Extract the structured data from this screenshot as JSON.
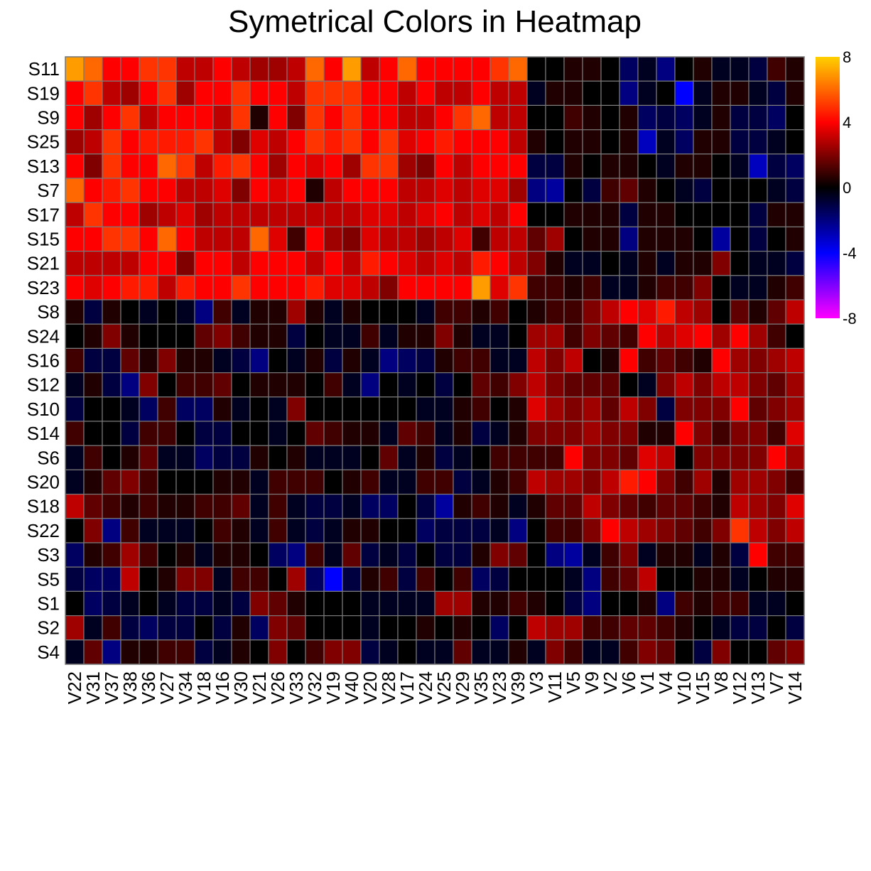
{
  "chart_data": {
    "type": "heatmap",
    "title": "Symetrical Colors in Heatmap",
    "rows": [
      "S11",
      "S19",
      "S9",
      "S25",
      "S13",
      "S7",
      "S17",
      "S15",
      "S21",
      "S23",
      "S8",
      "S24",
      "S16",
      "S12",
      "S10",
      "S14",
      "S6",
      "S20",
      "S18",
      "S22",
      "S3",
      "S5",
      "S1",
      "S2",
      "S4"
    ],
    "columns": [
      "V22",
      "V31",
      "V37",
      "V38",
      "V36",
      "V27",
      "V34",
      "V18",
      "V16",
      "V30",
      "V21",
      "V26",
      "V33",
      "V32",
      "V19",
      "V40",
      "V20",
      "V28",
      "V17",
      "V24",
      "V25",
      "V29",
      "V35",
      "V23",
      "V39",
      "V3",
      "V11",
      "V5",
      "V9",
      "V2",
      "V6",
      "V1",
      "V4",
      "V10",
      "V15",
      "V8",
      "V12",
      "V13",
      "V7",
      "V14"
    ],
    "values": [
      [
        7,
        6,
        4,
        4,
        5,
        5,
        3,
        3,
        4,
        3,
        2.5,
        2.5,
        3,
        6,
        4,
        7,
        3,
        4,
        6,
        4,
        4,
        4,
        4,
        5,
        6,
        0,
        0,
        0.5,
        0.5,
        0,
        -1.5,
        -0.5,
        -2,
        0,
        0.5,
        -0.5,
        -0.5,
        -1,
        1,
        0.5
      ],
      [
        4,
        5,
        3,
        2.5,
        4,
        5,
        2.5,
        4,
        4,
        5,
        4,
        4,
        3,
        5,
        5,
        5,
        4,
        4,
        3,
        4,
        3,
        3,
        4,
        3,
        3,
        -0.5,
        0.5,
        0.5,
        0,
        0,
        -2,
        -0.5,
        0,
        -4,
        -0.5,
        0.5,
        0.5,
        -0.5,
        -1,
        0.5
      ],
      [
        4,
        2.5,
        4,
        5,
        3,
        4,
        4,
        4,
        3,
        5,
        0.5,
        4,
        2,
        5,
        4,
        5,
        4,
        4,
        3,
        3,
        4,
        5,
        6,
        3,
        3,
        0,
        0,
        1,
        0.5,
        0,
        0.5,
        -1.5,
        -1,
        -1.5,
        -0.5,
        0.5,
        -1,
        -1,
        -1.5,
        0
      ],
      [
        2.5,
        3,
        5,
        4,
        4.5,
        4.5,
        4.5,
        5,
        3,
        2,
        3.5,
        3,
        4,
        5,
        4.5,
        5,
        4,
        5,
        3.5,
        4,
        4.5,
        4,
        4,
        4,
        3,
        0.5,
        0,
        0.5,
        0.5,
        0,
        0.5,
        -3,
        -0.5,
        -1.5,
        0.5,
        0.5,
        -1,
        -1,
        -0.5,
        0
      ],
      [
        4,
        2,
        5,
        4,
        4,
        6,
        5,
        3,
        4.5,
        5,
        4,
        2.5,
        4,
        3.5,
        4,
        2.5,
        5,
        5,
        2.5,
        2,
        4,
        3,
        4,
        4,
        4,
        -1,
        -1,
        0.5,
        0,
        0.5,
        0.5,
        0,
        -0.5,
        0.5,
        0.5,
        0,
        -0.5,
        -3,
        -1,
        -1.5
      ],
      [
        6,
        4,
        4.5,
        5,
        4,
        4,
        3,
        3,
        3.5,
        2,
        4,
        3.5,
        4,
        0.5,
        3,
        4,
        4,
        4,
        3,
        3,
        3.5,
        3,
        3.5,
        3.5,
        2.5,
        -2,
        -2.5,
        0,
        -1,
        1,
        1.5,
        0.5,
        0,
        -0.5,
        -1,
        0,
        0,
        0,
        -0.5,
        -1
      ],
      [
        3,
        5,
        4,
        4,
        2.5,
        3,
        3.5,
        2.5,
        3,
        3,
        3,
        3,
        3,
        3,
        3,
        3,
        3.5,
        3.5,
        3,
        3.5,
        4,
        3,
        3.5,
        3,
        4,
        0,
        0,
        0.5,
        0.5,
        0.5,
        -1,
        0.5,
        0.5,
        0,
        0,
        0,
        0,
        -1,
        0.5,
        0.5
      ],
      [
        4,
        4,
        5,
        5,
        4,
        6,
        4,
        3,
        3,
        3,
        6,
        3.5,
        1,
        4,
        2.5,
        2,
        3.5,
        3,
        3,
        2.5,
        3,
        3.5,
        1,
        3,
        3,
        1.5,
        2.5,
        0,
        0.5,
        0.5,
        -2,
        0.5,
        0.5,
        0.5,
        0,
        -2.5,
        0,
        -1,
        0,
        0.5
      ],
      [
        3,
        3,
        3,
        3,
        4,
        4,
        2,
        4,
        4,
        3,
        4,
        4,
        4,
        3,
        4,
        3,
        4.5,
        4,
        3.5,
        3,
        3.5,
        3,
        4.5,
        4,
        3,
        2,
        0.5,
        -0.5,
        -0.5,
        0,
        -0.5,
        0.5,
        -0.5,
        0.5,
        0.5,
        2,
        0,
        -0.5,
        -0.5,
        -1
      ],
      [
        4,
        3.5,
        4,
        4.5,
        4.5,
        3,
        4.5,
        4,
        4,
        5,
        4,
        4,
        4,
        4.5,
        3.5,
        3.5,
        3,
        2,
        4,
        4,
        4,
        4,
        7,
        3.5,
        5,
        1,
        1,
        0.5,
        1,
        -0.5,
        -0.5,
        0.5,
        1,
        1,
        2,
        0,
        -0.5,
        -0.5,
        0.5,
        1
      ],
      [
        0.5,
        -1,
        0.5,
        0,
        -0.5,
        0,
        -0.5,
        -2,
        1,
        -0.5,
        0.5,
        0.5,
        2.5,
        0.5,
        -0.5,
        0.5,
        0,
        0,
        0,
        -0.5,
        1,
        1,
        0.5,
        1,
        0,
        0.5,
        1,
        1,
        2,
        3,
        4,
        3.5,
        4.5,
        3,
        2.5,
        0,
        1.5,
        0.5,
        1.5,
        3
      ],
      [
        0,
        0.5,
        2,
        0.5,
        0,
        0,
        0,
        1.5,
        2,
        1,
        0.5,
        0.5,
        -1,
        0,
        -0.5,
        -0.5,
        1,
        -0.5,
        0.5,
        0.5,
        2,
        0.5,
        -0.5,
        -0.5,
        0,
        2.5,
        2.5,
        1,
        2,
        1.5,
        1,
        4,
        3,
        3.5,
        4,
        2.5,
        4,
        2.5,
        1,
        0
      ],
      [
        1,
        -1,
        -1,
        1.5,
        0.5,
        2,
        0.5,
        0.5,
        -0.5,
        -1,
        -2,
        0,
        -0.5,
        0.5,
        -1,
        0.5,
        -0.5,
        -2,
        -1.5,
        -1,
        0.5,
        1,
        1,
        -0.5,
        -0.5,
        3,
        2,
        3,
        0,
        0.5,
        4,
        1,
        1.5,
        1,
        0.5,
        4,
        2.5,
        2,
        2.5,
        3
      ],
      [
        -0.5,
        0.5,
        -1,
        -2,
        2,
        0,
        1,
        1,
        1.5,
        0,
        0.5,
        0.5,
        0.5,
        0,
        1,
        -0.5,
        -2,
        0,
        -0.5,
        0,
        -1,
        0,
        1.5,
        1,
        2,
        3,
        2,
        1.5,
        1.5,
        1.5,
        0,
        -0.5,
        2,
        3,
        2,
        3,
        3,
        2,
        1.5,
        2.5
      ],
      [
        -1,
        0,
        0,
        -0.5,
        -1.5,
        1,
        -1.5,
        -1.5,
        0.5,
        -0.5,
        0,
        -0.5,
        2,
        0,
        0,
        0,
        0,
        0,
        0,
        -0.5,
        -0.5,
        0.5,
        1,
        0,
        0.5,
        3.5,
        2.5,
        2,
        2.5,
        1.5,
        3,
        2,
        -1,
        2,
        2,
        2,
        4,
        1.5,
        2,
        2.5
      ],
      [
        1,
        0,
        0,
        -1,
        1,
        1,
        0,
        -1,
        -1,
        0,
        0,
        -0.5,
        0,
        1.5,
        1,
        0.5,
        0.5,
        -0.5,
        1.5,
        1,
        -0.5,
        0.5,
        -1,
        -0.5,
        0.5,
        2,
        2,
        2,
        2.5,
        2,
        2,
        0.5,
        0.5,
        4,
        2,
        1,
        2,
        2,
        1,
        3.5
      ],
      [
        -0.5,
        1,
        0,
        0.5,
        1.5,
        -0.5,
        -0.5,
        -1.5,
        -1,
        -1,
        0.5,
        0,
        0.5,
        -0.5,
        -0.5,
        -0.5,
        0,
        1.5,
        -0.5,
        0.5,
        -1,
        -0.5,
        0,
        1,
        1,
        1,
        1,
        4,
        2,
        2,
        1.5,
        3.5,
        3,
        0,
        2,
        2,
        2,
        2,
        4,
        2.5
      ],
      [
        -0.5,
        0.5,
        1.5,
        2,
        1,
        0,
        0,
        0,
        0.5,
        0.5,
        -0.5,
        1,
        1,
        1,
        0,
        0.5,
        1,
        -0.5,
        -0.5,
        1,
        1,
        -1,
        -0.5,
        0.5,
        1,
        3,
        2.5,
        2.5,
        2,
        3,
        4.5,
        4,
        2,
        1,
        2.5,
        0.5,
        2.5,
        2.5,
        2,
        1
      ],
      [
        3,
        1.5,
        1,
        0.5,
        1,
        0.5,
        0.5,
        1,
        1,
        1.5,
        -0.5,
        1,
        -0.5,
        -1,
        -1,
        -0.5,
        -1.5,
        -1.5,
        0,
        -1,
        -2.5,
        0.5,
        1,
        0.5,
        -0.5,
        0.5,
        1.5,
        1.5,
        3,
        2,
        1.5,
        1,
        1.5,
        1.5,
        1,
        0.5,
        3,
        2.5,
        2,
        3.5
      ],
      [
        0,
        2,
        -2,
        1,
        -0.5,
        -0.5,
        -0.5,
        0,
        1,
        0.5,
        -0.5,
        1,
        -0.5,
        -1,
        -0.5,
        0.5,
        0.5,
        0,
        0,
        -1.5,
        -1,
        -1,
        -1,
        -0.5,
        -2,
        0,
        1,
        1,
        2,
        4,
        3,
        2.5,
        2,
        1.5,
        1,
        2,
        5,
        3,
        2,
        3
      ],
      [
        -1.5,
        0.5,
        1,
        2.5,
        1,
        0,
        0.5,
        -0.5,
        0.5,
        0.5,
        0,
        -1.5,
        -2,
        1,
        -0.5,
        1.5,
        -1,
        -0.5,
        -1,
        0,
        -1,
        -1,
        0.5,
        2,
        1.5,
        0,
        -2,
        -2.5,
        -0.5,
        1,
        2,
        -0.5,
        0.5,
        0.5,
        -0.5,
        0.5,
        -1,
        4,
        1,
        1
      ],
      [
        -1,
        -1.5,
        -1.5,
        3,
        0,
        0.5,
        2,
        2,
        -0.5,
        1,
        1,
        0,
        2.5,
        -1.5,
        -4,
        -1,
        0.5,
        1,
        -1,
        1,
        0,
        1,
        -1.5,
        -1,
        0,
        0,
        0,
        -0.5,
        -2,
        1,
        1.5,
        3,
        0,
        0,
        0.5,
        0.5,
        -0.5,
        0,
        0.5,
        0.5
      ],
      [
        0,
        -1.5,
        -1,
        -0.5,
        0,
        -0.5,
        -1,
        -1,
        -0.5,
        -1,
        2,
        1.5,
        0.5,
        0,
        0,
        0,
        -0.5,
        -0.5,
        -0.5,
        -0.5,
        2.5,
        2.5,
        0.5,
        0.5,
        1,
        0.5,
        0,
        -1,
        -2,
        0,
        0,
        0.5,
        -2,
        1,
        0.5,
        1,
        1,
        -0.5,
        -0.5,
        0
      ],
      [
        2.5,
        -0.5,
        1,
        -1,
        -1.5,
        -1,
        -1,
        0,
        -1,
        0.5,
        -1.5,
        2,
        1.5,
        0,
        0,
        0,
        -0.5,
        0,
        0,
        0.5,
        0,
        0.5,
        0,
        -1.5,
        0,
        3,
        2.5,
        2.5,
        1,
        1,
        1.5,
        1.5,
        1,
        0.5,
        0,
        -0.5,
        -1,
        -1,
        0,
        -1
      ],
      [
        -0.5,
        1.5,
        -2,
        0.5,
        0.5,
        1,
        1,
        -1,
        -0.5,
        0.5,
        0,
        2,
        0,
        1,
        2,
        2,
        -1,
        -0.5,
        0,
        -0.5,
        -0.5,
        1.5,
        -0.5,
        -0.5,
        0.5,
        -0.5,
        2,
        1,
        -0.5,
        -0.5,
        1,
        2,
        1.5,
        0,
        -1,
        2,
        0,
        0,
        1.5,
        2
      ]
    ],
    "legend_range": [
      -8,
      8
    ],
    "legend_ticks": [
      "8",
      "4",
      "0",
      "-4",
      "-8"
    ],
    "legend_tick_values": [
      8,
      4,
      0,
      -4,
      -8
    ],
    "color_stops": [
      {
        "value": -8,
        "color": "#ff00ff"
      },
      {
        "value": -4,
        "color": "#0000ff"
      },
      {
        "value": 0,
        "color": "#000000"
      },
      {
        "value": 4,
        "color": "#ff0000"
      },
      {
        "value": 8,
        "color": "#ffd000"
      }
    ],
    "grid_color": "#7a7a7a",
    "legend_placement": "right"
  }
}
